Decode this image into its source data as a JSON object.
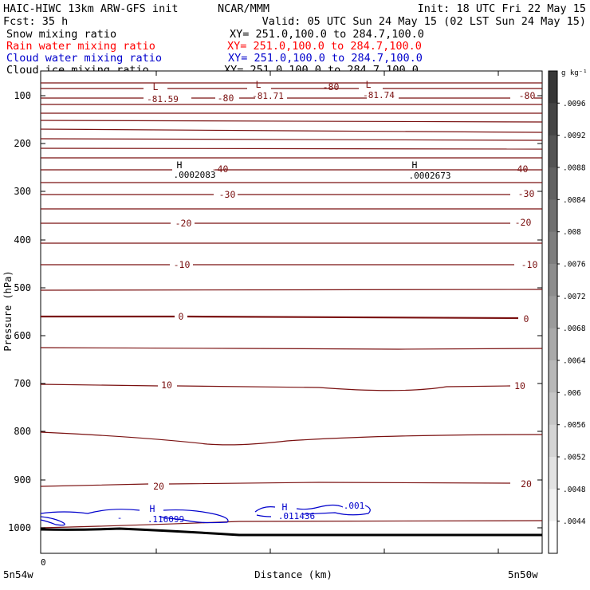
{
  "header": {
    "model": "HAIC-HIWC 13km ARW-GFS init",
    "org": "NCAR/MMM",
    "init": "Init: 18 UTC Fri 22 May 15",
    "fcst": "Fcst:   35 h",
    "valid": "Valid: 05 UTC Sun 24 May 15 (02 LST Sun 24 May 15)"
  },
  "legend": [
    {
      "name": "Snow mixing ratio",
      "xy": "XY= 251.0,100.0 to 284.7,100.0",
      "color": "#000000"
    },
    {
      "name": "Rain water mixing ratio",
      "xy": "XY= 251.0,100.0 to 284.7,100.0",
      "color": "#ff0000"
    },
    {
      "name": "Cloud water mixing ratio",
      "xy": "XY= 251.0,100.0 to 284.7,100.0",
      "color": "#0000cc"
    },
    {
      "name": "Cloud ice mixing ratio",
      "xy": "XY= 251.0,100.0 to 284.7,100.0",
      "color": "#000000"
    }
  ],
  "chart_data": {
    "type": "contour cross-section",
    "ylabel": "Pressure (hPa)",
    "xlabel": "Distance (km)",
    "x_origin_label": "0",
    "x_left_label": "5n54w",
    "x_right_label": "5n50w",
    "ylim": [
      1050,
      50
    ],
    "y_ticks": [
      100,
      200,
      300,
      400,
      500,
      600,
      700,
      800,
      900,
      1000
    ],
    "colorbar": {
      "unit": "g kg⁻¹",
      "ticks": [
        ".0096",
        ".0092",
        ".0088",
        ".0084",
        ".008",
        ".0076",
        ".0072",
        ".0068",
        ".0064",
        ".006",
        ".0056",
        ".0052",
        ".0048",
        ".0044"
      ],
      "range": [
        0.0042,
        0.01
      ]
    },
    "temperature_contours": [
      {
        "value": -80,
        "labels": [
          "-80",
          "-80",
          "-80"
        ]
      },
      {
        "value": -40,
        "labels": [
          "-40",
          "-40"
        ]
      },
      {
        "value": -30,
        "labels": [
          "-30",
          "-30"
        ]
      },
      {
        "value": -20,
        "labels": [
          "-20",
          "-20"
        ]
      },
      {
        "value": -10,
        "labels": [
          "-10",
          "-10"
        ]
      },
      {
        "value": 0,
        "labels": [
          "0",
          "0"
        ]
      },
      {
        "value": 10,
        "labels": [
          "10",
          "10"
        ]
      },
      {
        "value": 20,
        "labels": [
          "20",
          "20"
        ]
      }
    ],
    "extrema": [
      {
        "type": "L",
        "value": "-81.59"
      },
      {
        "type": "L",
        "value": "-81.71"
      },
      {
        "type": "L",
        "value": "-81.74"
      },
      {
        "type": "H",
        "value": ".0002083"
      },
      {
        "type": "H",
        "value": ".0002673"
      },
      {
        "type": "H",
        "value": ".116099"
      },
      {
        "type": "H",
        "value": ".011436"
      }
    ],
    "cloud_water_labels": [
      ".001",
      "-"
    ]
  }
}
